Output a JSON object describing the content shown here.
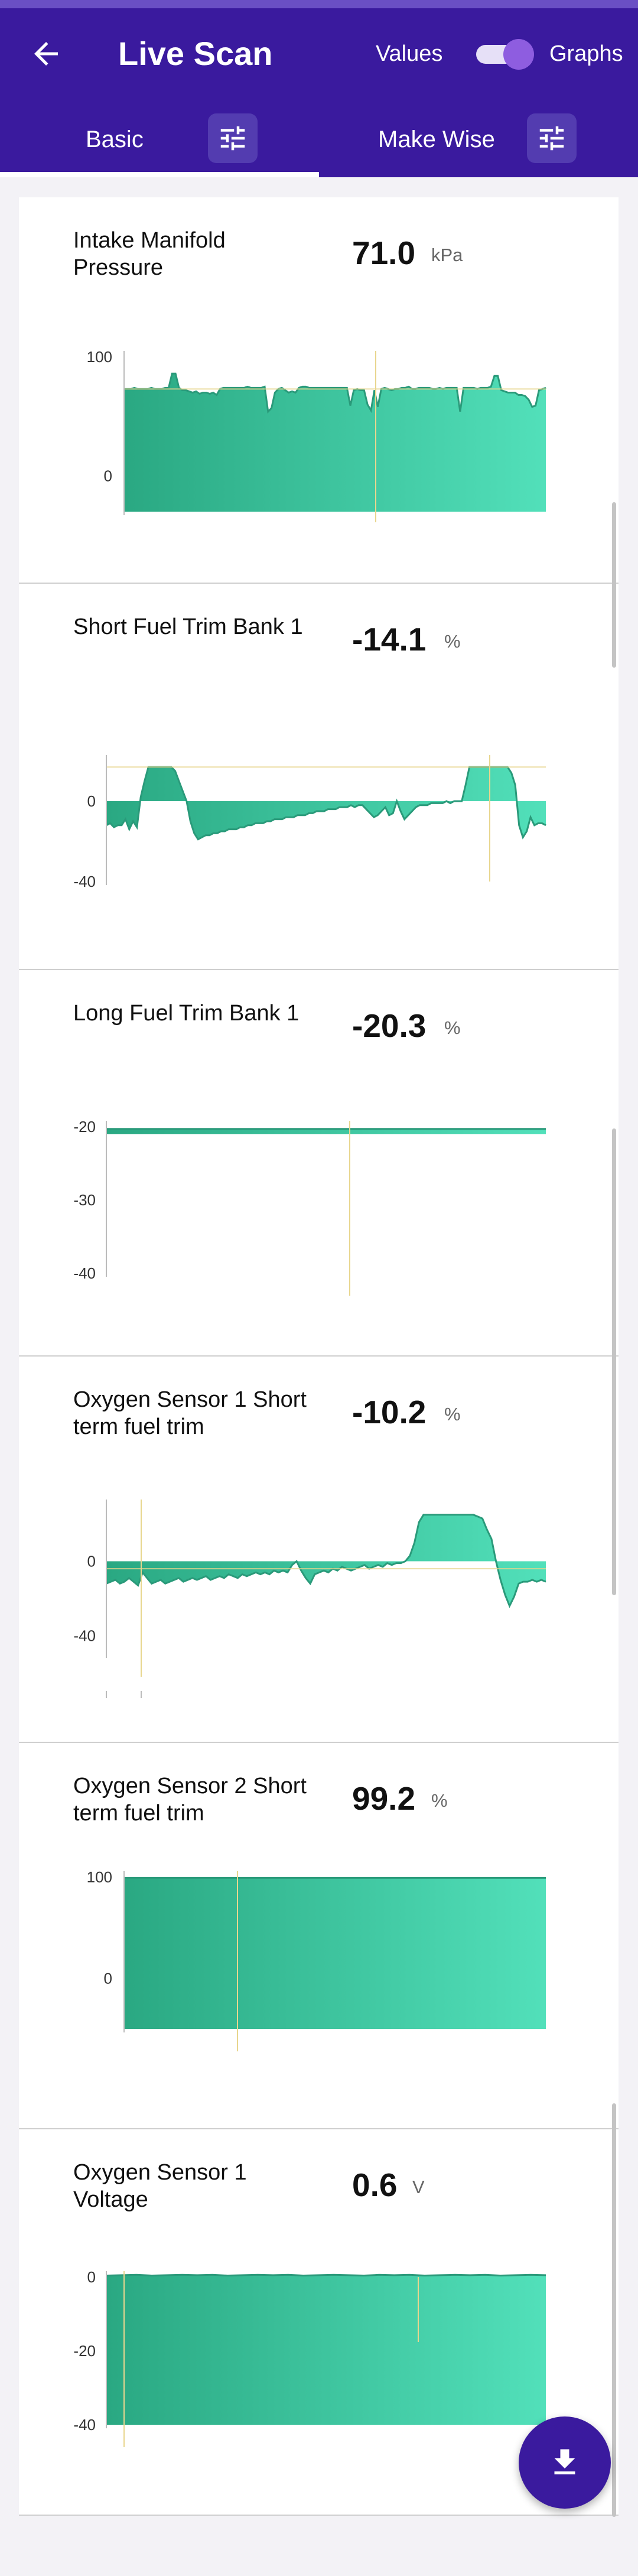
{
  "header": {
    "title": "Live Scan",
    "back_icon": "arrow-left-icon",
    "values_label": "Values",
    "graphs_label": "Graphs",
    "graphs_toggle_on": true,
    "bar_color": "#3a1a9e"
  },
  "tabs": [
    {
      "label": "Basic",
      "selected": true,
      "settings_icon": "tune-icon"
    },
    {
      "label": "Make Wise",
      "selected": false,
      "settings_icon": "tune-icon"
    }
  ],
  "fab": {
    "icon": "download-icon"
  },
  "colors": {
    "fill_start": "#2aa882",
    "fill_end": "#52e0ba",
    "line": "#2a9a7a",
    "cursor": "#e8d68e"
  },
  "sensors": [
    {
      "name": "Intake Manifold Pressure",
      "value": "71.0",
      "unit": "kPa",
      "chart_data": {
        "type": "area",
        "y_ticks": [
          "100",
          "0"
        ],
        "ylim": [
          -30,
          100
        ],
        "baseline": -30,
        "values": [
          73,
          73,
          73,
          74,
          73,
          73,
          73,
          73,
          74,
          73,
          73,
          73,
          74,
          74,
          86,
          86,
          74,
          72,
          72,
          71,
          70,
          71,
          69,
          70,
          70,
          69,
          70,
          68,
          73,
          74,
          74,
          74,
          74,
          74,
          74,
          74,
          75,
          74,
          74,
          74,
          74,
          75,
          54,
          57,
          70,
          73,
          74,
          72,
          70,
          71,
          70,
          74,
          75,
          75,
          74,
          74,
          74,
          74,
          74,
          74,
          74,
          74,
          74,
          74,
          74,
          74,
          59,
          72,
          73,
          72,
          72,
          60,
          55,
          72,
          58,
          73,
          74,
          73,
          72,
          73,
          73,
          74,
          74,
          75,
          73,
          73,
          74,
          74,
          74,
          74,
          73,
          73,
          74,
          73,
          74,
          74,
          74,
          74,
          54,
          74,
          74,
          74,
          74,
          73,
          74,
          74,
          74,
          75,
          84,
          84,
          72,
          71,
          70,
          70,
          70,
          68,
          68,
          67,
          64,
          58,
          59,
          72,
          73,
          74
        ]
      }
    },
    {
      "name": "Short Fuel Trim Bank 1",
      "value": "-14.1",
      "unit": "%",
      "chart_data": {
        "type": "area",
        "y_ticks": [
          "0",
          "-40"
        ],
        "ylim": [
          -40,
          20
        ],
        "baseline": 0,
        "values": [
          -12,
          -11,
          -13,
          -12,
          -12,
          -9,
          -14,
          -10,
          -13,
          2,
          10,
          17,
          17,
          17,
          17,
          17,
          17,
          17,
          15,
          10,
          5,
          0,
          -10,
          -16,
          -19,
          -18,
          -17,
          -17,
          -16,
          -16,
          -15,
          -15,
          -14,
          -14,
          -14,
          -13,
          -13,
          -12,
          -12,
          -11,
          -11,
          -11,
          -10,
          -10,
          -9,
          -9,
          -9,
          -8,
          -8,
          -8,
          -7,
          -7,
          -7,
          -6,
          -6,
          -5,
          -5,
          -5,
          -4,
          -4,
          -4,
          -3,
          -3,
          -3,
          -2,
          -3,
          -2,
          -2,
          -4,
          -6,
          -8,
          -7,
          -5,
          -3,
          -7,
          -6,
          0,
          -5,
          -9,
          -7,
          -5,
          -3,
          -2,
          -2,
          -2,
          -1,
          -1,
          -1,
          -1,
          0,
          -1,
          0,
          0,
          0,
          8,
          17,
          17,
          17,
          17,
          17,
          17,
          17,
          17,
          17,
          17,
          17,
          14,
          8,
          -12,
          -18,
          -15,
          -8,
          -12,
          -11,
          -11,
          -12
        ]
      }
    },
    {
      "name": "Long Fuel Trim Bank 1",
      "value": "-20.3",
      "unit": "%",
      "chart_data": {
        "type": "area",
        "y_ticks": [
          "-20",
          "-30",
          "-40"
        ],
        "ylim": [
          -40,
          -20
        ],
        "baseline": -21,
        "values": [
          -20.3,
          -20.3,
          -20.3,
          -20.3,
          -20.3,
          -20.3,
          -20.3,
          -20.3,
          -20.3,
          -20.3,
          -20.3,
          -20.3,
          -20.3,
          -20.3,
          -20.3,
          -20.3,
          -20.3,
          -20.3,
          -20.3,
          -20.3,
          -20.3,
          -20.3,
          -20.3,
          -20.3,
          -20.3,
          -20.3,
          -20.3,
          -20.3,
          -20.3,
          -20.3
        ]
      }
    },
    {
      "name": "Oxygen Sensor 1 Short term fuel trim",
      "value": "-10.2",
      "unit": "%",
      "chart_data": {
        "type": "area",
        "y_ticks": [
          "0",
          "-40"
        ],
        "ylim": [
          -50,
          30
        ],
        "baseline": 0,
        "values": [
          -12,
          -11,
          -10,
          -12,
          -11,
          -9,
          -11,
          -13,
          -6,
          -9,
          -12,
          -11,
          -10,
          -12,
          -11,
          -10,
          -9,
          -11,
          -10,
          -9,
          -10,
          -9,
          -8,
          -10,
          -9,
          -8,
          -9,
          -7,
          -8,
          -9,
          -7,
          -8,
          -7,
          -6,
          -7,
          -6,
          -7,
          -5,
          -6,
          -5,
          -6,
          -2,
          0,
          -5,
          -9,
          -12,
          -7,
          -6,
          -5,
          -6,
          -4,
          -5,
          -3,
          -4,
          -5,
          -4,
          -3,
          -2,
          -4,
          -3,
          -2,
          -3,
          -1,
          -2,
          -1,
          -1,
          0,
          3,
          10,
          21,
          25,
          25,
          25,
          25,
          25,
          25,
          25,
          25,
          25,
          25,
          25,
          25,
          24,
          23,
          17,
          12,
          0,
          -10,
          -18,
          -24,
          -19,
          -12,
          -11,
          -11,
          -10,
          -11,
          -10,
          -11
        ]
      }
    },
    {
      "name": "Oxygen Sensor 2 Short term fuel trim",
      "value": "99.2",
      "unit": "%",
      "chart_data": {
        "type": "area",
        "y_ticks": [
          "100",
          "0"
        ],
        "ylim": [
          -50,
          100
        ],
        "baseline": -50,
        "values": [
          99.2,
          99.2,
          99.2,
          99.2,
          99.2,
          99.2,
          99.2,
          99.2,
          99.2,
          99.2,
          99.2,
          99.2,
          99.2,
          99.2,
          99.2,
          99.2,
          99.2,
          99.2,
          99.2,
          99.2,
          99.2,
          99.2,
          99.2,
          99.2,
          99.2,
          99.2,
          99.2,
          99.2,
          99.2,
          99.2
        ]
      }
    },
    {
      "name": "Oxygen Sensor 1 Voltage",
      "value": "0.6",
      "unit": "V",
      "chart_data": {
        "type": "area",
        "y_ticks": [
          "0",
          "-20",
          "-40"
        ],
        "ylim": [
          -40,
          0
        ],
        "baseline": -40,
        "values": [
          0.4,
          0.5,
          0.6,
          0.4,
          0.5,
          0.6,
          0.5,
          0.6,
          0.4,
          0.5,
          0.6,
          0.5,
          0.6,
          0.4,
          0.5,
          0.6,
          0.5,
          0.4,
          0.6,
          0.5,
          0.6,
          0.4,
          0.5,
          0.6,
          0.5,
          0.6,
          0.4,
          0.5,
          0.6,
          0.5
        ]
      }
    }
  ]
}
